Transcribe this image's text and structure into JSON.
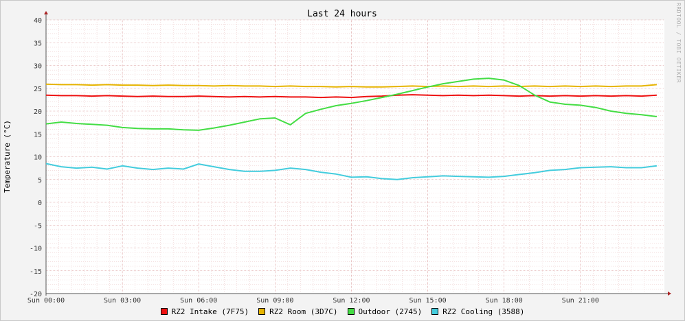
{
  "watermark": "RRDTOOL / TOBI OETIKER",
  "chart_data": {
    "type": "line",
    "title": "Last 24 hours",
    "ylabel": "Temperature (°C)",
    "xlabel": "",
    "ylim": [
      -20,
      40
    ],
    "xlim": [
      0,
      24.3
    ],
    "yticks": [
      -20,
      -15,
      -10,
      -5,
      0,
      5,
      10,
      15,
      20,
      25,
      30,
      35,
      40
    ],
    "xticks": [
      {
        "x": 0,
        "label": "Sun 00:00"
      },
      {
        "x": 3,
        "label": "Sun 03:00"
      },
      {
        "x": 6,
        "label": "Sun 06:00"
      },
      {
        "x": 9,
        "label": "Sun 09:00"
      },
      {
        "x": 12,
        "label": "Sun 12:00"
      },
      {
        "x": 15,
        "label": "Sun 15:00"
      },
      {
        "x": 18,
        "label": "Sun 18:00"
      },
      {
        "x": 21,
        "label": "Sun 21:00"
      }
    ],
    "grid": true,
    "legend_position": "bottom",
    "series": [
      {
        "name": "RZ2 Intake (7F75)",
        "color": "#ee1111",
        "x": [
          0,
          0.6,
          1.2,
          1.8,
          2.4,
          3.0,
          3.6,
          4.2,
          4.8,
          5.4,
          6.0,
          6.6,
          7.2,
          7.8,
          8.4,
          9.0,
          9.6,
          10.2,
          10.8,
          11.4,
          12.0,
          12.6,
          13.2,
          13.8,
          14.4,
          15.0,
          15.6,
          16.2,
          16.8,
          17.4,
          18.0,
          18.6,
          19.2,
          19.8,
          20.4,
          21.0,
          21.6,
          22.2,
          22.8,
          23.4,
          24.0
        ],
        "y": [
          23.5,
          23.4,
          23.4,
          23.3,
          23.4,
          23.3,
          23.2,
          23.3,
          23.2,
          23.2,
          23.3,
          23.2,
          23.1,
          23.2,
          23.1,
          23.2,
          23.1,
          23.1,
          23.0,
          23.1,
          23.0,
          23.2,
          23.3,
          23.5,
          23.6,
          23.5,
          23.4,
          23.5,
          23.4,
          23.5,
          23.4,
          23.3,
          23.4,
          23.3,
          23.4,
          23.3,
          23.4,
          23.3,
          23.4,
          23.3,
          23.5
        ]
      },
      {
        "name": "RZ2 Room (3D7C)",
        "color": "#e6b400",
        "x": [
          0,
          0.6,
          1.2,
          1.8,
          2.4,
          3.0,
          3.6,
          4.2,
          4.8,
          5.4,
          6.0,
          6.6,
          7.2,
          7.8,
          8.4,
          9.0,
          9.6,
          10.2,
          10.8,
          11.4,
          12.0,
          12.6,
          13.2,
          13.8,
          14.4,
          15.0,
          15.6,
          16.2,
          16.8,
          17.4,
          18.0,
          18.6,
          19.2,
          19.8,
          20.4,
          21.0,
          21.6,
          22.2,
          22.8,
          23.4,
          24.0
        ],
        "y": [
          25.9,
          25.8,
          25.8,
          25.7,
          25.8,
          25.7,
          25.7,
          25.6,
          25.7,
          25.6,
          25.6,
          25.5,
          25.6,
          25.5,
          25.5,
          25.4,
          25.5,
          25.4,
          25.4,
          25.3,
          25.4,
          25.3,
          25.3,
          25.4,
          25.5,
          25.4,
          25.5,
          25.4,
          25.5,
          25.4,
          25.5,
          25.4,
          25.5,
          25.4,
          25.5,
          25.4,
          25.5,
          25.4,
          25.5,
          25.5,
          25.8
        ]
      },
      {
        "name": "Outdoor (2745)",
        "color": "#44dd44",
        "x": [
          0,
          0.6,
          1.2,
          1.8,
          2.4,
          3.0,
          3.6,
          4.2,
          4.8,
          5.4,
          6.0,
          6.6,
          7.2,
          7.8,
          8.4,
          9.0,
          9.6,
          10.2,
          10.8,
          11.4,
          12.0,
          12.6,
          13.2,
          13.8,
          14.4,
          15.0,
          15.6,
          16.2,
          16.8,
          17.4,
          18.0,
          18.6,
          19.2,
          19.8,
          20.4,
          21.0,
          21.6,
          22.2,
          22.8,
          23.4,
          24.0
        ],
        "y": [
          17.2,
          17.6,
          17.3,
          17.1,
          16.9,
          16.4,
          16.2,
          16.1,
          16.1,
          15.9,
          15.8,
          16.3,
          16.9,
          17.6,
          18.3,
          18.5,
          17.0,
          19.5,
          20.4,
          21.2,
          21.7,
          22.3,
          23.0,
          23.7,
          24.5,
          25.3,
          26.0,
          26.5,
          27.0,
          27.2,
          26.8,
          25.6,
          23.5,
          22.0,
          21.5,
          21.3,
          20.8,
          20.0,
          19.5,
          19.2,
          18.8
        ]
      },
      {
        "name": "RZ2 Cooling (3588)",
        "color": "#44ccdd",
        "x": [
          0,
          0.6,
          1.2,
          1.8,
          2.4,
          3.0,
          3.6,
          4.2,
          4.8,
          5.4,
          6.0,
          6.6,
          7.2,
          7.8,
          8.4,
          9.0,
          9.6,
          10.2,
          10.8,
          11.4,
          12.0,
          12.6,
          13.2,
          13.8,
          14.4,
          15.0,
          15.6,
          16.2,
          16.8,
          17.4,
          18.0,
          18.6,
          19.2,
          19.8,
          20.4,
          21.0,
          21.6,
          22.2,
          22.8,
          23.4,
          24.0
        ],
        "y": [
          8.5,
          7.8,
          7.5,
          7.7,
          7.3,
          8.0,
          7.5,
          7.2,
          7.5,
          7.3,
          8.4,
          7.8,
          7.2,
          6.8,
          6.8,
          7.0,
          7.5,
          7.2,
          6.6,
          6.2,
          5.5,
          5.6,
          5.2,
          5.0,
          5.4,
          5.6,
          5.8,
          5.7,
          5.6,
          5.5,
          5.7,
          6.1,
          6.5,
          7.0,
          7.2,
          7.6,
          7.7,
          7.8,
          7.6,
          7.6,
          8.0
        ]
      }
    ]
  }
}
